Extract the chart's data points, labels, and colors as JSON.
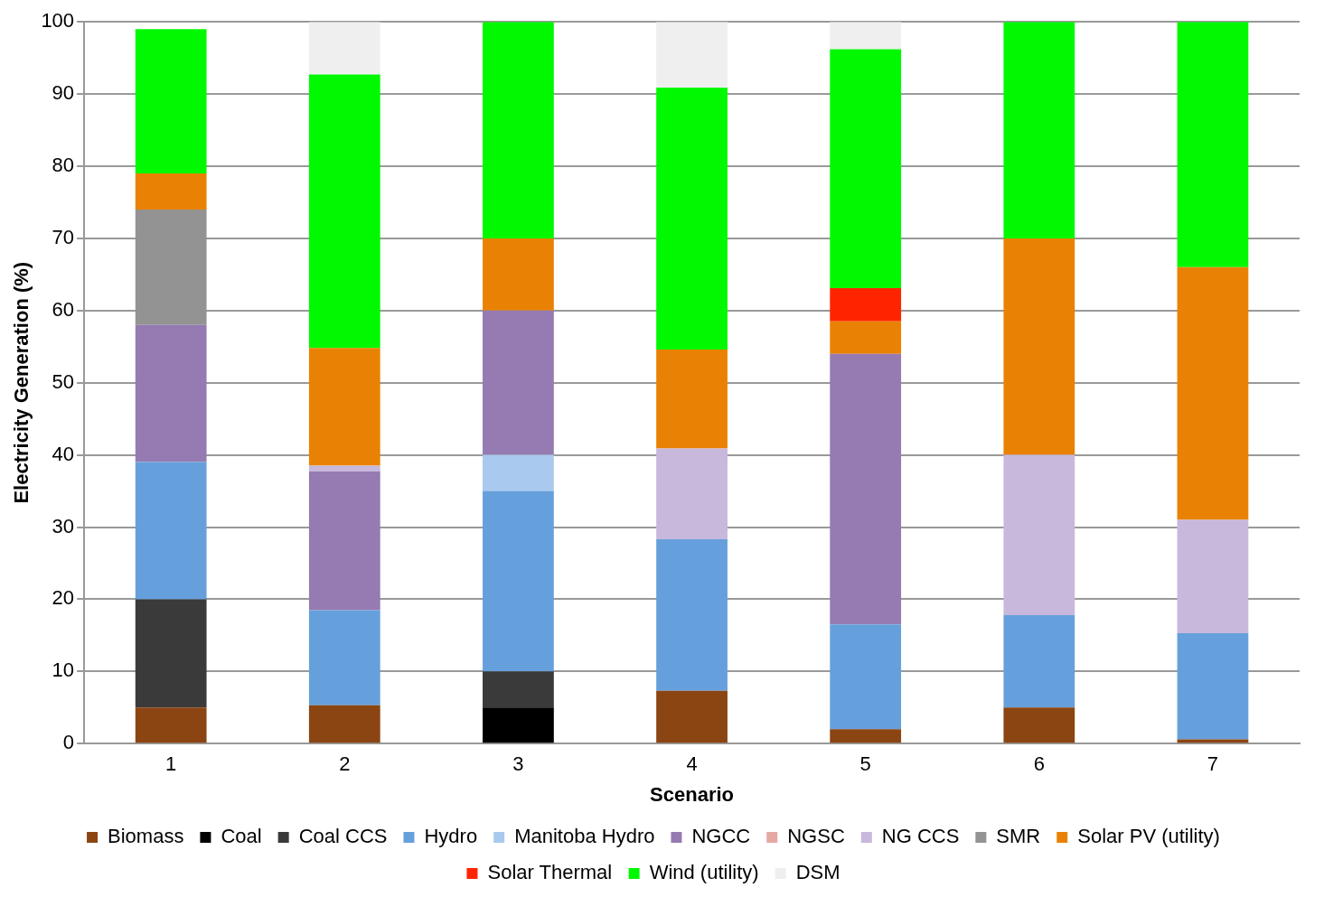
{
  "chart_data": {
    "type": "bar",
    "stacked": true,
    "xlabel": "Scenario",
    "ylabel": "Electricity Generation (%)",
    "categories": [
      "1",
      "2",
      "3",
      "4",
      "5",
      "6",
      "7"
    ],
    "ylim": [
      0,
      100
    ],
    "yticks": [
      0,
      10,
      20,
      30,
      40,
      50,
      60,
      70,
      80,
      90,
      100
    ],
    "grid": "y",
    "legend": "bottom",
    "series": [
      {
        "name": "Biomass",
        "color": "#8b4513",
        "values": [
          5,
          5.3,
          null,
          7.3,
          2,
          5,
          0.6
        ]
      },
      {
        "name": "Coal",
        "color": "#000000",
        "values": [
          null,
          null,
          5,
          null,
          null,
          null,
          null
        ]
      },
      {
        "name": "Coal CCS",
        "color": "#3a3a3a",
        "values": [
          15,
          null,
          5,
          null,
          null,
          null,
          null
        ]
      },
      {
        "name": "Hydro",
        "color": "#66a0dc",
        "values": [
          19,
          13.2,
          25,
          21,
          14.5,
          12.8,
          14.7
        ]
      },
      {
        "name": "Manitoba Hydro",
        "color": "#a9c9ee",
        "values": [
          null,
          null,
          5,
          null,
          null,
          null,
          null
        ]
      },
      {
        "name": "NGCC",
        "color": "#957bb2",
        "values": [
          19,
          19.2,
          20,
          null,
          37.5,
          null,
          null
        ]
      },
      {
        "name": "NGSC",
        "color": "#e6a8a3",
        "values": [
          null,
          null,
          null,
          null,
          null,
          null,
          null
        ]
      },
      {
        "name": "NG CCS",
        "color": "#c8b8dc",
        "values": [
          null,
          0.8,
          null,
          12.6,
          null,
          22.2,
          15.7
        ]
      },
      {
        "name": "SMR",
        "color": "#939393",
        "values": [
          16,
          null,
          null,
          null,
          null,
          null,
          null
        ]
      },
      {
        "name": "Solar PV (utility)",
        "color": "#e98204",
        "values": [
          5,
          16.3,
          10,
          13.7,
          4.5,
          30,
          35
        ]
      },
      {
        "name": "Solar Thermal",
        "color": "#ff2400",
        "values": [
          null,
          null,
          null,
          null,
          4.6,
          null,
          null
        ]
      },
      {
        "name": "Wind (utility)",
        "color": "#00f900",
        "values": [
          20,
          37.9,
          30,
          36.3,
          33.1,
          30,
          34
        ]
      },
      {
        "name": "DSM",
        "color": "#efefef",
        "values": [
          null,
          7.3,
          null,
          9.1,
          3.8,
          null,
          null
        ]
      }
    ]
  }
}
